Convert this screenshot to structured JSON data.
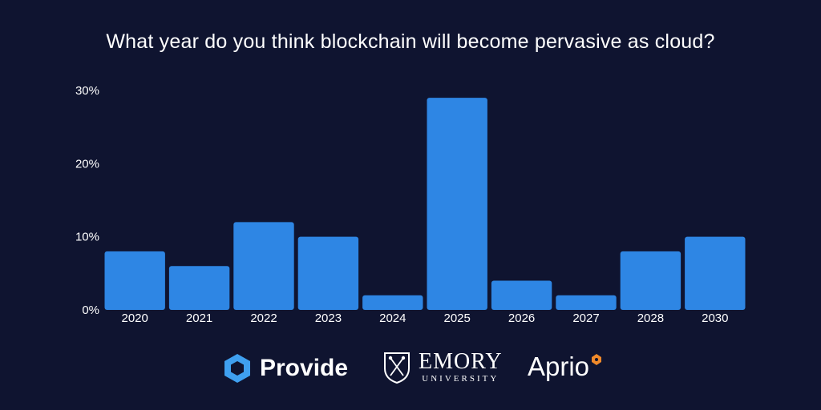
{
  "header": {
    "title": "What year do you think blockchain will become pervasive as cloud?"
  },
  "chart_data": {
    "type": "bar",
    "title": "What year do you think blockchain will become pervasive as cloud?",
    "xlabel": "",
    "ylabel": "",
    "categories": [
      "2020",
      "2021",
      "2022",
      "2023",
      "2024",
      "2025",
      "2026",
      "2027",
      "2028",
      "2030"
    ],
    "values": [
      8,
      6,
      12,
      10,
      2,
      29,
      4,
      2,
      8,
      10
    ],
    "value_unit": "%",
    "ylim": [
      0,
      30
    ],
    "yticks": [
      0,
      10,
      20,
      30
    ],
    "ytick_labels": [
      "0%",
      "10%",
      "20%",
      "30%"
    ],
    "grid": false,
    "legend": "none",
    "bar_color": "#2e86e4",
    "background": "#0f1430"
  },
  "logos": {
    "provide": {
      "text": "Provide",
      "icon": "hexagon-logo-icon",
      "color": "#3fa0f0"
    },
    "emory": {
      "main": "EMORY",
      "sub": "UNIVERSITY",
      "icon": "shield-crest-icon"
    },
    "aprio": {
      "text": "Aprio",
      "icon": "orange-badge-icon",
      "color": "#f08a2a"
    }
  }
}
